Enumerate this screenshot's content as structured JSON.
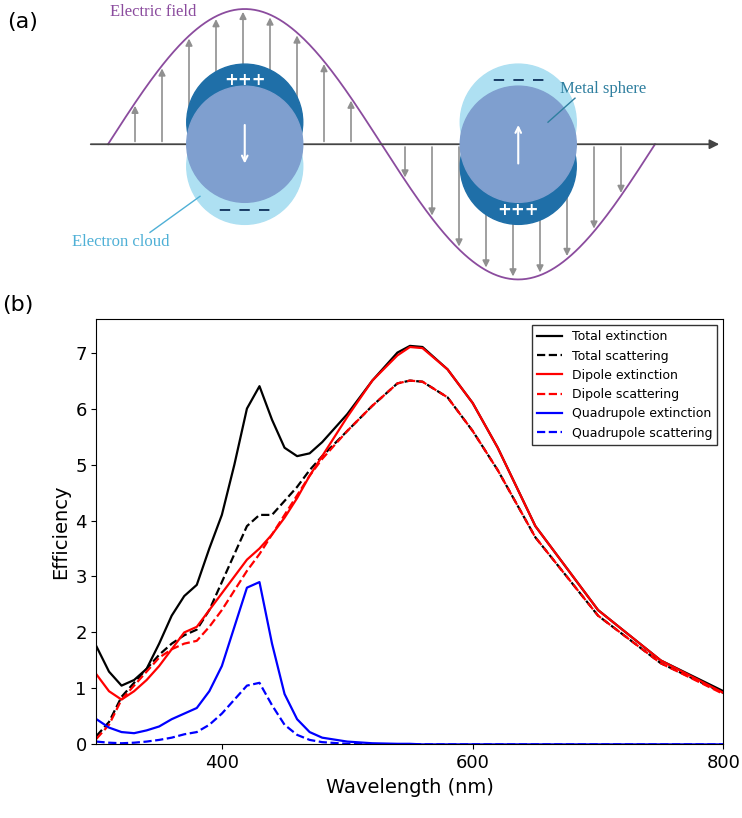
{
  "diagram": {
    "panel_label": "(a)",
    "labels": {
      "electric_field": "Electric field",
      "metal_sphere": "Metal sphere",
      "electron_cloud": "Electron cloud"
    },
    "charges": {
      "positive": "+++",
      "negative": "− − −"
    }
  },
  "chart_data": {
    "type": "line",
    "title": "(b)",
    "x_label": "Wavelength (nm)",
    "y_label": "Efficiency",
    "x": [
      300,
      310,
      320,
      330,
      340,
      350,
      360,
      370,
      380,
      390,
      400,
      410,
      420,
      430,
      440,
      450,
      460,
      470,
      480,
      500,
      520,
      540,
      550,
      560,
      580,
      600,
      620,
      650,
      700,
      750,
      800
    ],
    "series": [
      {
        "name": "Total extinction",
        "color": "#000000",
        "line_style": "solid",
        "values": [
          1.75,
          1.3,
          1.05,
          1.15,
          1.35,
          1.8,
          2.3,
          2.65,
          2.85,
          3.5,
          4.1,
          5.0,
          6.0,
          6.4,
          5.8,
          5.3,
          5.15,
          5.2,
          5.4,
          5.9,
          6.5,
          7.0,
          7.12,
          7.1,
          6.7,
          6.1,
          5.3,
          3.9,
          2.4,
          1.5,
          0.95
        ]
      },
      {
        "name": "Total scattering",
        "color": "#000000",
        "line_style": "dashed",
        "values": [
          0.15,
          0.4,
          0.85,
          1.1,
          1.35,
          1.6,
          1.8,
          1.95,
          2.05,
          2.4,
          2.9,
          3.4,
          3.9,
          4.1,
          4.1,
          4.35,
          4.6,
          4.9,
          5.15,
          5.6,
          6.05,
          6.45,
          6.5,
          6.48,
          6.2,
          5.6,
          4.9,
          3.7,
          2.3,
          1.45,
          0.92
        ]
      },
      {
        "name": "Dipole extinction",
        "color": "#ff0000",
        "line_style": "solid",
        "values": [
          1.25,
          0.95,
          0.8,
          0.95,
          1.15,
          1.4,
          1.7,
          2.0,
          2.1,
          2.4,
          2.7,
          3.0,
          3.3,
          3.5,
          3.75,
          4.05,
          4.4,
          4.8,
          5.15,
          5.85,
          6.5,
          6.95,
          7.1,
          7.08,
          6.7,
          6.1,
          5.3,
          3.9,
          2.4,
          1.5,
          0.92
        ]
      },
      {
        "name": "Dipole scattering",
        "color": "#ff0000",
        "line_style": "dashed",
        "values": [
          0.1,
          0.35,
          0.8,
          1.05,
          1.3,
          1.55,
          1.7,
          1.8,
          1.85,
          2.1,
          2.4,
          2.75,
          3.1,
          3.4,
          3.75,
          4.1,
          4.45,
          4.8,
          5.1,
          5.6,
          6.05,
          6.45,
          6.5,
          6.48,
          6.2,
          5.6,
          4.9,
          3.7,
          2.3,
          1.45,
          0.9
        ]
      },
      {
        "name": "Quadrupole extinction",
        "color": "#0000ff",
        "line_style": "solid",
        "values": [
          0.45,
          0.3,
          0.22,
          0.2,
          0.25,
          0.32,
          0.45,
          0.55,
          0.65,
          0.95,
          1.4,
          2.1,
          2.8,
          2.9,
          1.8,
          0.9,
          0.45,
          0.22,
          0.12,
          0.05,
          0.02,
          0.01,
          0.01,
          0,
          0,
          0,
          0,
          0,
          0,
          0,
          0
        ]
      },
      {
        "name": "Quadrupole scattering",
        "color": "#0000ff",
        "line_style": "dashed",
        "values": [
          0.05,
          0.03,
          0.02,
          0.03,
          0.05,
          0.08,
          0.12,
          0.18,
          0.22,
          0.35,
          0.55,
          0.8,
          1.05,
          1.1,
          0.7,
          0.35,
          0.17,
          0.08,
          0.04,
          0.01,
          0,
          0,
          0,
          0,
          0,
          0,
          0,
          0,
          0,
          0,
          0
        ]
      }
    ],
    "xlim": [
      300,
      800
    ],
    "xticks": [
      400,
      600,
      800
    ],
    "ylim": [
      0,
      7.6
    ],
    "yticks": [
      0,
      1,
      2,
      3,
      4,
      5,
      6,
      7
    ],
    "legend": "upper right"
  }
}
